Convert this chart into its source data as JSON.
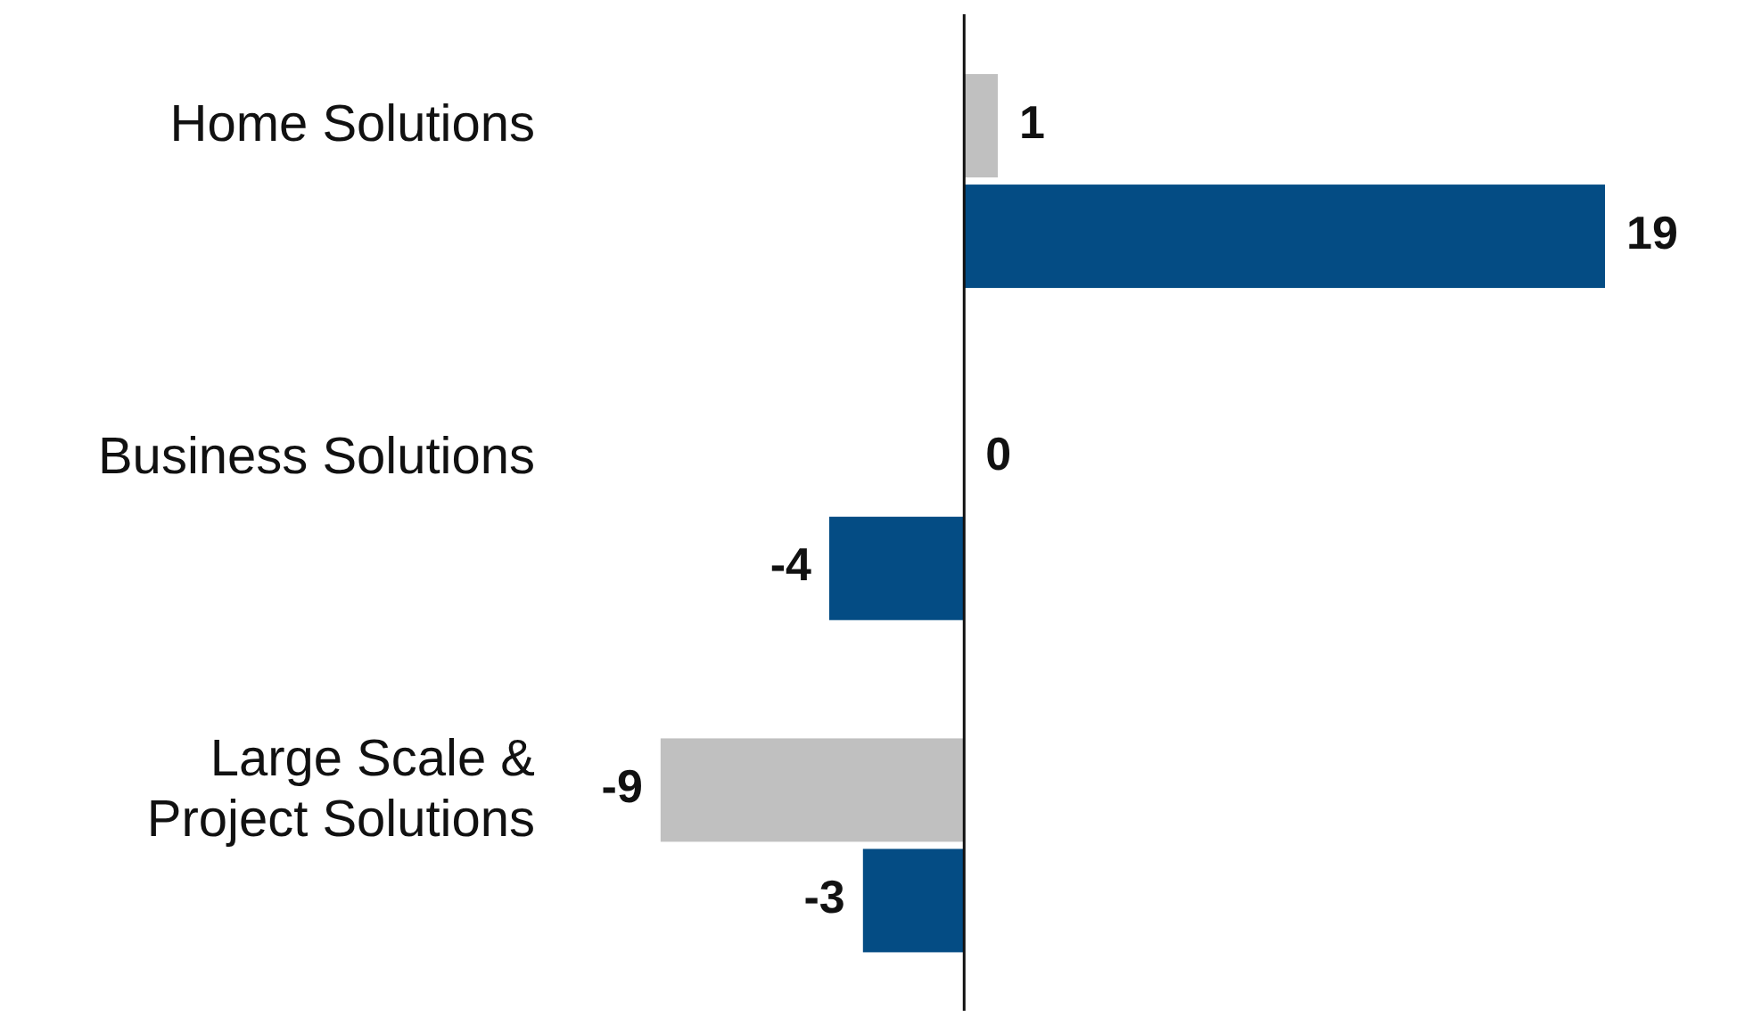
{
  "chart_data": {
    "type": "bar",
    "orientation": "horizontal",
    "categories": [
      "Home Solutions",
      "Business Solutions",
      "Large Scale & Project Solutions"
    ],
    "series": [
      {
        "color": "#c0c0c0",
        "values": [
          1,
          0,
          -9
        ]
      },
      {
        "color": "#044c84",
        "values": [
          19,
          -4,
          -3
        ]
      }
    ],
    "data_labels": true,
    "tick_labels": "y"
  }
}
